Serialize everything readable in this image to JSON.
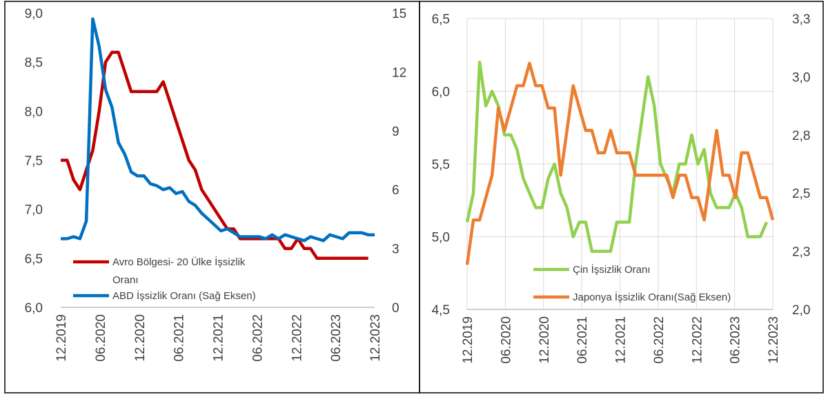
{
  "chart_data": [
    {
      "type": "line",
      "title": "",
      "x_tick_labels": [
        "12.2019",
        "06.2020",
        "12.2020",
        "06.2021",
        "12.2021",
        "06.2022",
        "12.2022",
        "06.2023",
        "12.2023"
      ],
      "y_left": {
        "min": 6.0,
        "max": 9.0,
        "ticks": [
          "6,0",
          "6,5",
          "7,0",
          "7,5",
          "8,0",
          "8,5",
          "9,0"
        ]
      },
      "y_right": {
        "min": 0,
        "max": 15,
        "ticks": [
          "0",
          "3",
          "6",
          "9",
          "12",
          "15"
        ]
      },
      "grid": false,
      "legend_position": "bottom-left",
      "series": [
        {
          "name_line1": "Avro Bölgesi- 20 Ülke İşsizlik",
          "name_line2": "Oranı",
          "axis": "left",
          "color": "#c00000",
          "values": [
            7.5,
            7.5,
            7.3,
            7.2,
            7.4,
            7.6,
            8.0,
            8.5,
            8.6,
            8.6,
            8.4,
            8.2,
            8.2,
            8.2,
            8.2,
            8.2,
            8.3,
            8.1,
            7.9,
            7.7,
            7.5,
            7.4,
            7.2,
            7.1,
            7.0,
            6.9,
            6.8,
            6.8,
            6.7,
            6.7,
            6.7,
            6.7,
            6.7,
            6.7,
            6.7,
            6.6,
            6.6,
            6.7,
            6.6,
            6.6,
            6.5,
            6.5,
            6.5,
            6.5,
            6.5,
            6.5,
            6.5,
            6.5,
            6.5
          ]
        },
        {
          "name": "ABD İşsizlik Oranı (Sağ Eksen)",
          "axis": "right",
          "color": "#0070c0",
          "values": [
            3.5,
            3.5,
            3.6,
            3.5,
            4.4,
            14.7,
            13.3,
            11.1,
            10.2,
            8.4,
            7.8,
            6.9,
            6.7,
            6.7,
            6.3,
            6.2,
            6.0,
            6.1,
            5.8,
            5.9,
            5.4,
            5.2,
            4.8,
            4.5,
            4.2,
            3.9,
            4.0,
            3.8,
            3.6,
            3.6,
            3.6,
            3.6,
            3.5,
            3.7,
            3.5,
            3.7,
            3.6,
            3.5,
            3.4,
            3.6,
            3.5,
            3.4,
            3.7,
            3.6,
            3.5,
            3.8,
            3.8,
            3.8,
            3.7,
            3.7
          ]
        }
      ]
    },
    {
      "type": "line",
      "title": "",
      "x_tick_labels": [
        "12.2019",
        "06.2020",
        "12.2020",
        "06.2021",
        "12.2021",
        "06.2022",
        "12.2022",
        "06.2023",
        "12.2023"
      ],
      "y_left": {
        "min": 4.5,
        "max": 6.5,
        "ticks": [
          "4,5",
          "5,0",
          "5,5",
          "6,0",
          "6,5"
        ]
      },
      "y_right": {
        "min": 2.0,
        "max": 3.3,
        "ticks": [
          "2,0",
          "2,3",
          "2,5",
          "2,8",
          "3,0",
          "3,3"
        ]
      },
      "grid": true,
      "legend_position": "bottom-center",
      "series": [
        {
          "name": "Çin İşsizlik Oranı",
          "axis": "left",
          "color": "#92d050",
          "values": [
            5.1,
            5.3,
            6.2,
            5.9,
            6.0,
            5.9,
            5.7,
            5.7,
            5.6,
            5.4,
            5.3,
            5.2,
            5.2,
            5.4,
            5.5,
            5.3,
            5.2,
            5.0,
            5.1,
            5.1,
            4.9,
            4.9,
            4.9,
            4.9,
            5.1,
            5.1,
            5.1,
            5.5,
            5.8,
            6.1,
            5.9,
            5.5,
            5.4,
            5.3,
            5.5,
            5.5,
            5.7,
            5.5,
            5.6,
            5.3,
            5.2,
            5.2,
            5.2,
            5.3,
            5.2,
            5.0,
            5.0,
            5.0,
            5.1
          ]
        },
        {
          "name": "Japonya İşsizlik Oranı(Sağ Eksen)",
          "axis": "right",
          "color": "#ed7d31",
          "values": [
            2.2,
            2.4,
            2.4,
            2.5,
            2.6,
            2.9,
            2.8,
            2.9,
            3.0,
            3.0,
            3.1,
            3.0,
            3.0,
            2.9,
            2.9,
            2.6,
            2.8,
            3.0,
            2.9,
            2.8,
            2.8,
            2.7,
            2.7,
            2.8,
            2.7,
            2.7,
            2.7,
            2.6,
            2.6,
            2.6,
            2.6,
            2.6,
            2.6,
            2.5,
            2.6,
            2.6,
            2.5,
            2.5,
            2.4,
            2.6,
            2.8,
            2.6,
            2.6,
            2.5,
            2.7,
            2.7,
            2.6,
            2.5,
            2.5,
            2.4
          ]
        }
      ]
    }
  ]
}
